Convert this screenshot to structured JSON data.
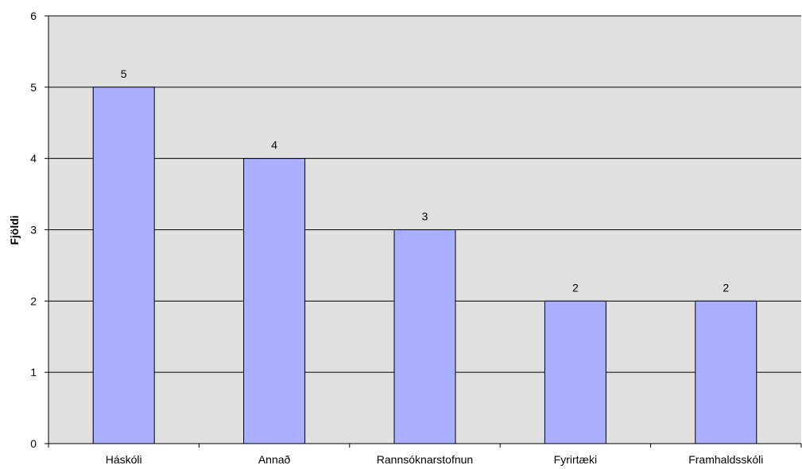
{
  "chart_data": {
    "type": "bar",
    "categories": [
      "Háskóli",
      "Annað",
      "Rannsóknarstofnun",
      "Fyrirtæki",
      "Framhaldsskóli"
    ],
    "values": [
      5,
      4,
      3,
      2,
      2
    ],
    "title": "",
    "xlabel": "",
    "ylabel": "Fjöldi",
    "ylim": [
      0,
      6
    ],
    "yticks": [
      0,
      1,
      2,
      3,
      4,
      5,
      6
    ],
    "grid": true,
    "legend": "none",
    "colors": {
      "bar_fill": "#aab0ff",
      "bar_stroke": "#000000",
      "plot_background": "#e0e0e0",
      "gridline": "#000000",
      "axis": "#000000"
    }
  }
}
